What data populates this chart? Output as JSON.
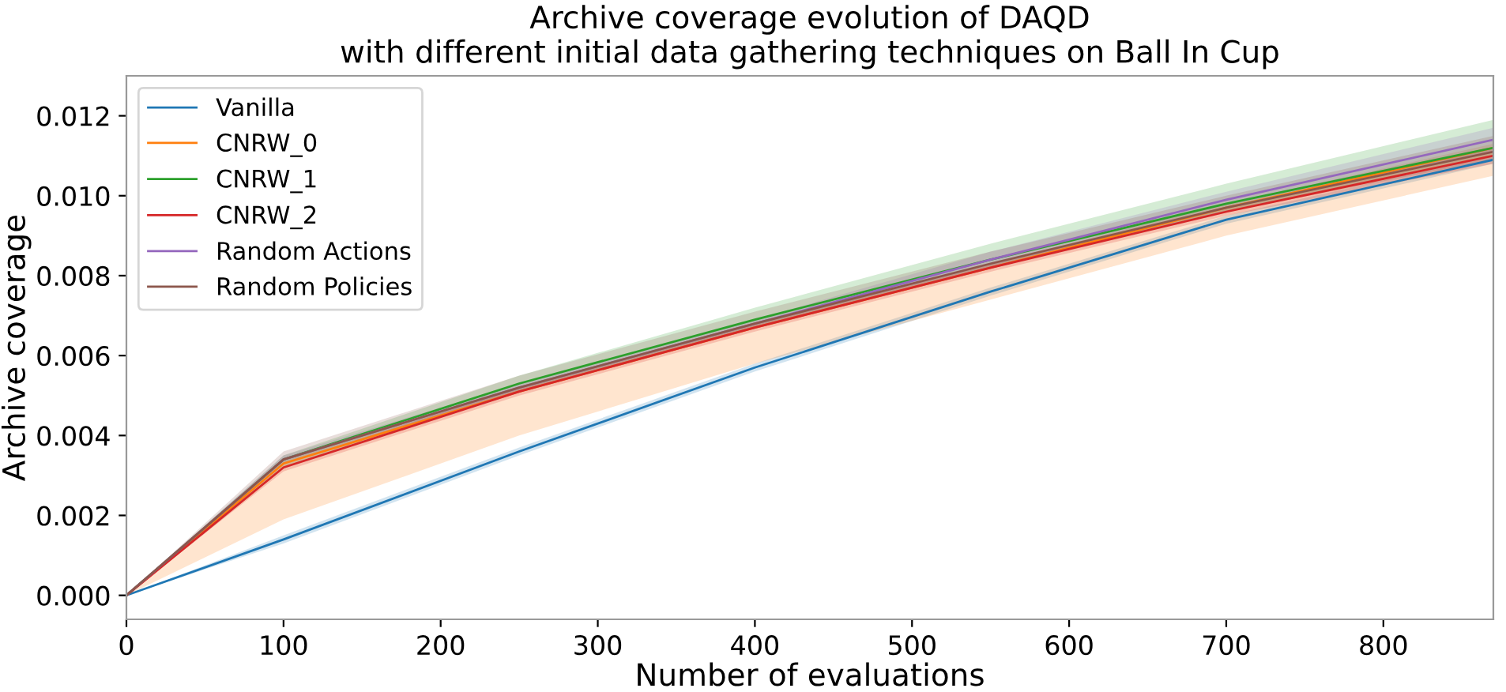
{
  "chart_data": {
    "type": "line",
    "title": "Archive coverage evolution of DAQD\nwith different initial data gathering techniques on Ball In Cup",
    "xlabel": "Number of evaluations",
    "ylabel": "Archive coverage",
    "x": [
      0,
      100,
      250,
      400,
      550,
      700,
      870
    ],
    "series": [
      {
        "name": "Vanilla",
        "color": "#1f77b4",
        "values": [
          0,
          0.0014,
          0.0036,
          0.0057,
          0.0076,
          0.0094,
          0.0109
        ],
        "lower": [
          0,
          0.0013,
          0.0035,
          0.0056,
          0.0075,
          0.0093,
          0.0108
        ],
        "upper": [
          0,
          0.0015,
          0.0037,
          0.0058,
          0.0077,
          0.0095,
          0.011
        ]
      },
      {
        "name": "CNRW_0",
        "color": "#ff7f0e",
        "values": [
          0,
          0.0033,
          0.0051,
          0.0067,
          0.0082,
          0.0097,
          0.0112
        ],
        "lower": [
          0,
          0.0019,
          0.004,
          0.0058,
          0.0074,
          0.009,
          0.0105
        ],
        "upper": [
          0,
          0.0034,
          0.0052,
          0.0068,
          0.0083,
          0.0098,
          0.0113
        ]
      },
      {
        "name": "CNRW_1",
        "color": "#2ca02c",
        "values": [
          0,
          0.0034,
          0.0053,
          0.0069,
          0.0084,
          0.0098,
          0.0112
        ],
        "lower": [
          0,
          0.0032,
          0.0051,
          0.0067,
          0.0082,
          0.0096,
          0.011
        ],
        "upper": [
          0,
          0.0035,
          0.0055,
          0.0072,
          0.0088,
          0.0103,
          0.0119
        ]
      },
      {
        "name": "CNRW_2",
        "color": "#d62728",
        "values": [
          0,
          0.0032,
          0.0051,
          0.0067,
          0.0082,
          0.0096,
          0.011
        ],
        "lower": [
          0,
          0.0031,
          0.005,
          0.0066,
          0.0081,
          0.0095,
          0.0108
        ],
        "upper": [
          0,
          0.0033,
          0.0052,
          0.0068,
          0.0083,
          0.0097,
          0.0112
        ]
      },
      {
        "name": "Random Actions",
        "color": "#9467bd",
        "values": [
          0,
          0.0034,
          0.0052,
          0.0068,
          0.0084,
          0.0099,
          0.0114
        ],
        "lower": [
          0,
          0.0033,
          0.0051,
          0.0067,
          0.0082,
          0.0097,
          0.0111
        ],
        "upper": [
          0,
          0.0035,
          0.0053,
          0.0069,
          0.0086,
          0.0101,
          0.0117
        ]
      },
      {
        "name": "Random Policies",
        "color": "#8c564b",
        "values": [
          0,
          0.0034,
          0.0052,
          0.0068,
          0.0083,
          0.0097,
          0.0111
        ],
        "lower": [
          0,
          0.0033,
          0.0051,
          0.0067,
          0.0082,
          0.0096,
          0.0109
        ],
        "upper": [
          0,
          0.0036,
          0.0055,
          0.0071,
          0.0086,
          0.01,
          0.0115
        ]
      }
    ],
    "xlim": [
      0,
      870
    ],
    "xticks": [
      0,
      100,
      200,
      300,
      400,
      500,
      600,
      700,
      800
    ],
    "ylim": [
      -0.0006,
      0.013
    ],
    "yticks": [
      {
        "value": 0,
        "label": "0.000"
      },
      {
        "value": 0.002,
        "label": "0.002"
      },
      {
        "value": 0.004,
        "label": "0.004"
      },
      {
        "value": 0.006,
        "label": "0.006"
      },
      {
        "value": 0.008,
        "label": "0.008"
      },
      {
        "value": 0.01,
        "label": "0.010"
      },
      {
        "value": 0.012,
        "label": "0.012"
      }
    ],
    "legend": "top left",
    "grid": false
  }
}
